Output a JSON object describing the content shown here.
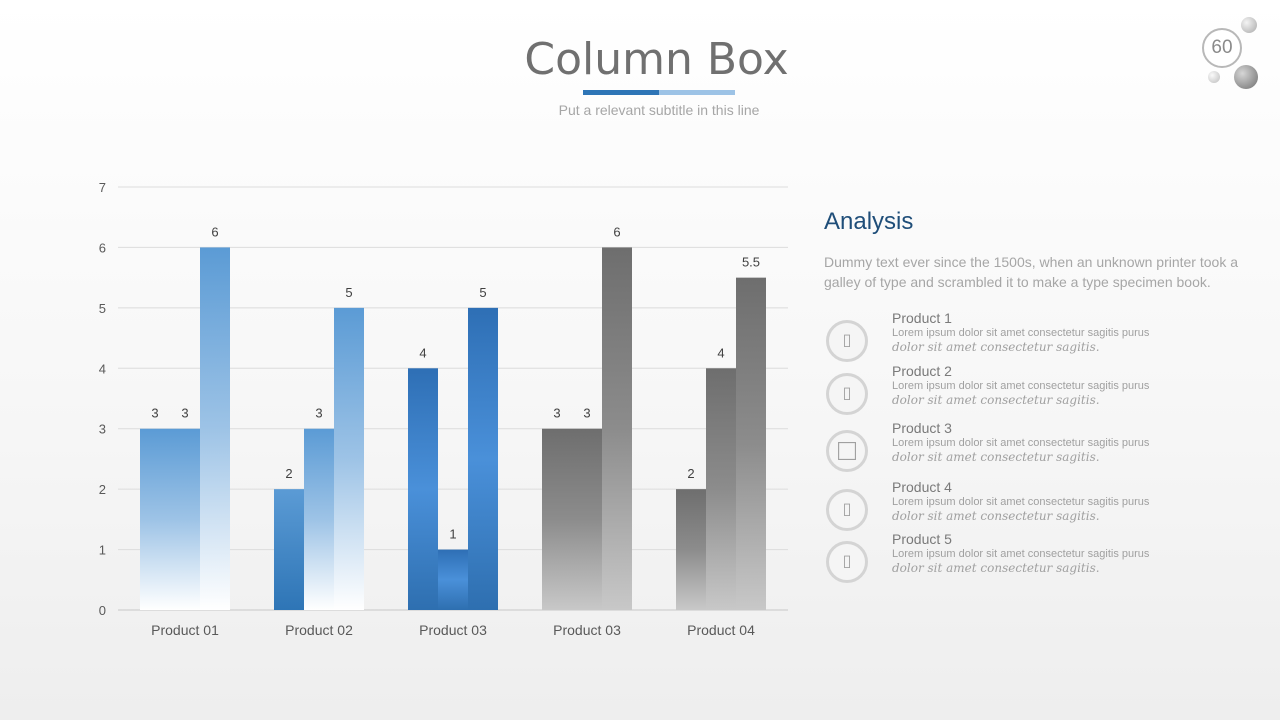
{
  "header": {
    "title": "Column Box",
    "subtitle": "Put a relevant subtitle in this line",
    "accent_colors": [
      "#2e75b6",
      "#9dc3e6"
    ]
  },
  "page_number": "60",
  "chart_data": {
    "type": "bar",
    "categories": [
      "Product 01",
      "Product 02",
      "Product 03",
      "Product 03",
      "Product 04"
    ],
    "group_values": [
      [
        3,
        3,
        6
      ],
      [
        2,
        3,
        5
      ],
      [
        4,
        1,
        5
      ],
      [
        3,
        3,
        6
      ],
      [
        2,
        4,
        5.5
      ]
    ],
    "group_colors": [
      "blue-light",
      "blue-light",
      "blue-dark",
      "gray",
      "gray"
    ],
    "yticks": [
      "0",
      "1",
      "2",
      "3",
      "4",
      "5",
      "6",
      "7"
    ],
    "ylim": [
      0,
      7
    ],
    "grid": true,
    "legend": "none"
  },
  "analysis": {
    "title": "Analysis",
    "text": "Dummy text ever since the 1500s, when an unknown printer took a galley of type and scrambled it to make a type specimen book.",
    "items": [
      {
        "name": "Product 1",
        "desc": "Lorem ipsum dolor sit amet consectetur sagitis purus",
        "desc_italic": "dolor sit amet consectetur sagitis.",
        "icon": "placeholder-icon"
      },
      {
        "name": "Product 2",
        "desc": "Lorem ipsum dolor sit amet consectetur sagitis purus",
        "desc_italic": "dolor sit amet consectetur sagitis.",
        "icon": "placeholder-icon"
      },
      {
        "name": "Product 3",
        "desc": "Lorem ipsum dolor sit amet consectetur sagitis purus",
        "desc_italic": "dolor sit amet consectetur sagitis.",
        "icon": "square-icon"
      },
      {
        "name": "Product 4",
        "desc": "Lorem ipsum dolor sit amet consectetur sagitis purus",
        "desc_italic": "dolor sit amet consectetur sagitis.",
        "icon": "placeholder-icon"
      },
      {
        "name": "Product 5",
        "desc": "Lorem ipsum dolor sit amet consectetur sagitis purus",
        "desc_italic": "dolor sit amet consectetur sagitis.",
        "icon": "placeholder-icon"
      }
    ]
  }
}
